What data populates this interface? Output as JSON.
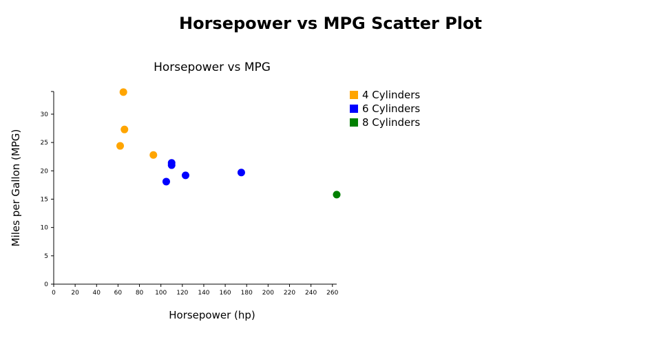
{
  "page": {
    "title": "Horsepower vs MPG Scatter Plot"
  },
  "chart_data": {
    "type": "scatter",
    "title": "Horsepower vs MPG",
    "xlabel": "Horsepower (hp)",
    "ylabel": "Miles per Gallon (MPG)",
    "xlim": [
      0,
      264
    ],
    "ylim": [
      0,
      34
    ],
    "xticks": [
      0,
      20,
      40,
      60,
      80,
      100,
      120,
      140,
      160,
      180,
      200,
      220,
      240,
      260
    ],
    "yticks": [
      0,
      5,
      10,
      15,
      20,
      25,
      30
    ],
    "grid": false,
    "legend_position": "top-right",
    "series": [
      {
        "name": "4 Cylinders",
        "color": "#FFA500",
        "points": [
          {
            "x": 62,
            "y": 24.4
          },
          {
            "x": 65,
            "y": 33.9
          },
          {
            "x": 66,
            "y": 27.3
          },
          {
            "x": 93,
            "y": 22.8
          }
        ]
      },
      {
        "name": "6 Cylinders",
        "color": "#0000FF",
        "points": [
          {
            "x": 105,
            "y": 18.1
          },
          {
            "x": 110,
            "y": 21.0
          },
          {
            "x": 110,
            "y": 21.4
          },
          {
            "x": 123,
            "y": 19.2
          },
          {
            "x": 175,
            "y": 19.7
          }
        ]
      },
      {
        "name": "8 Cylinders",
        "color": "#008000",
        "points": [
          {
            "x": 264,
            "y": 15.8
          }
        ]
      }
    ]
  }
}
